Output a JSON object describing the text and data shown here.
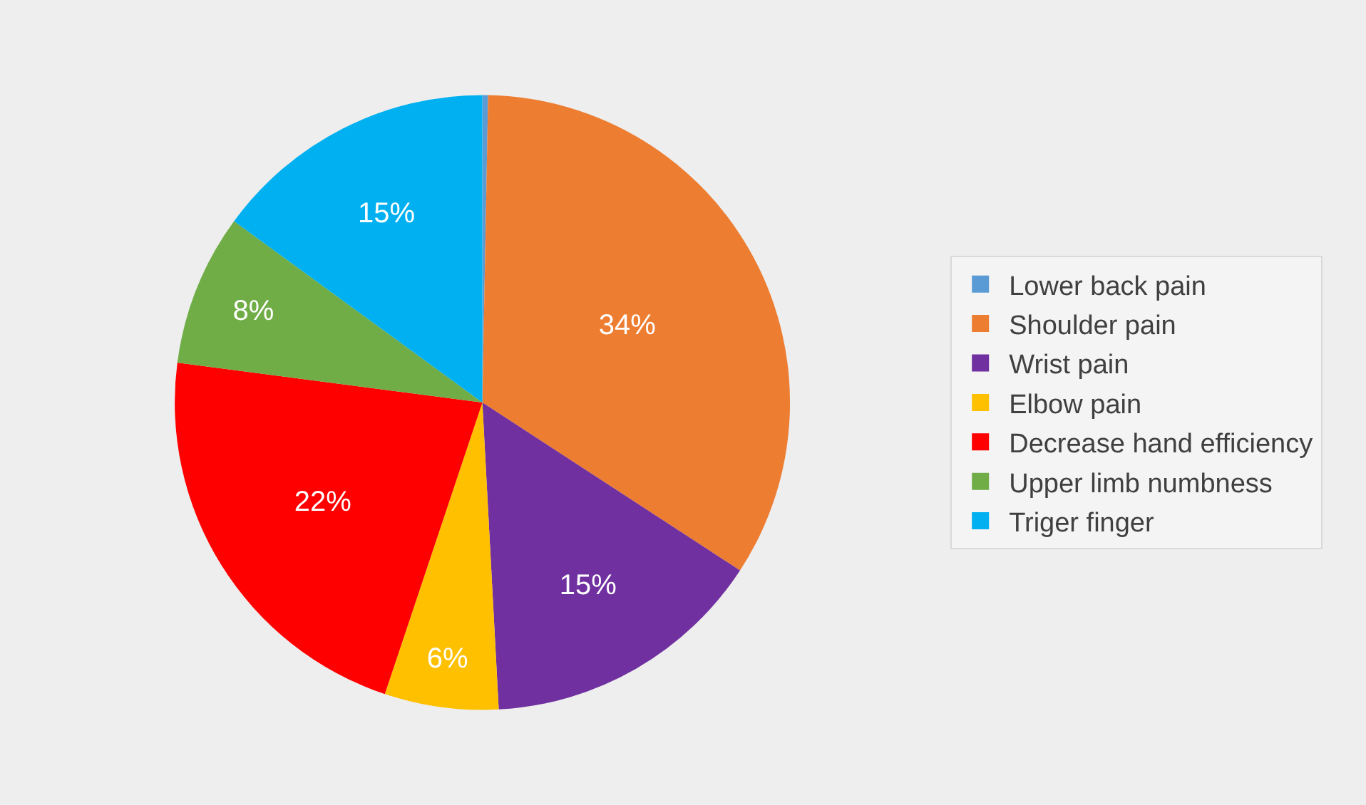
{
  "chart_data": {
    "type": "pie",
    "categories": [
      "Lower back pain",
      "Shoulder pain",
      "Wrist pain",
      "Elbow pain",
      "Decrease hand efficiency",
      "Upper limb numbness",
      "Triger finger"
    ],
    "values": [
      0.3,
      34,
      15,
      6,
      22,
      8,
      15
    ],
    "value_labels": [
      null,
      "34%",
      "15%",
      "6%",
      "22%",
      "8%",
      "15%"
    ],
    "colors": [
      "#5b9bd5",
      "#ed7d31",
      "#7030a0",
      "#ffc000",
      "#ff0000",
      "#70ad47",
      "#00b0f0"
    ],
    "legend": "right"
  }
}
